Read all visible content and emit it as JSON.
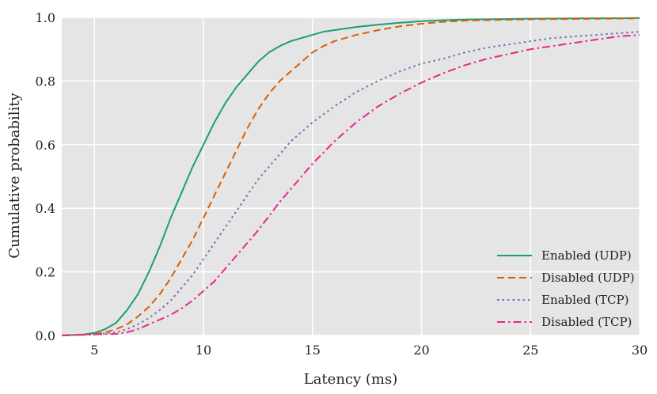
{
  "chart_data": {
    "type": "line",
    "title": "",
    "xlabel": "Latency (ms)",
    "ylabel": "Cumulative probability",
    "xlim": [
      3.5,
      30
    ],
    "ylim": [
      0,
      1
    ],
    "xticks": [
      5,
      10,
      15,
      20,
      25,
      30
    ],
    "xtick_labels": [
      "5",
      "10",
      "15",
      "20",
      "25",
      "30"
    ],
    "yticks": [
      0,
      0.2,
      0.4,
      0.6,
      0.8,
      1.0
    ],
    "ytick_labels": [
      "0.0",
      "0.2",
      "0.4",
      "0.6",
      "0.8",
      "1.0"
    ],
    "grid": true,
    "background": "#e5e5e5",
    "legend_position": "bottom-right",
    "series": [
      {
        "name": "Enabled (UDP)",
        "color": "#1b9e77",
        "dash": "solid",
        "x": [
          3.5,
          4.5,
          5,
          5.5,
          6,
          6.5,
          7,
          7.5,
          8,
          8.5,
          9,
          9.5,
          10,
          10.5,
          11,
          11.5,
          12,
          12.5,
          13,
          13.5,
          14,
          14.5,
          15,
          15.5,
          16,
          17,
          18,
          19,
          20,
          21,
          22,
          25,
          30
        ],
        "y": [
          0.0,
          0.003,
          0.008,
          0.02,
          0.04,
          0.08,
          0.13,
          0.2,
          0.28,
          0.37,
          0.45,
          0.53,
          0.6,
          0.67,
          0.73,
          0.78,
          0.82,
          0.86,
          0.89,
          0.91,
          0.925,
          0.935,
          0.945,
          0.955,
          0.96,
          0.97,
          0.977,
          0.983,
          0.988,
          0.991,
          0.993,
          0.996,
          0.998
        ]
      },
      {
        "name": "Disabled (UDP)",
        "color": "#d95f02",
        "dash": "dashed",
        "x": [
          3.5,
          5,
          5.5,
          6,
          6.5,
          7,
          7.5,
          8,
          8.5,
          9,
          9.5,
          10,
          10.5,
          11,
          11.5,
          12,
          12.5,
          13,
          13.5,
          14,
          14.5,
          15,
          15.5,
          16,
          17,
          18,
          19,
          20,
          21,
          22,
          25,
          30
        ],
        "y": [
          0.0,
          0.004,
          0.01,
          0.02,
          0.035,
          0.06,
          0.09,
          0.13,
          0.18,
          0.24,
          0.3,
          0.37,
          0.44,
          0.51,
          0.58,
          0.65,
          0.71,
          0.76,
          0.8,
          0.83,
          0.86,
          0.89,
          0.91,
          0.925,
          0.945,
          0.96,
          0.972,
          0.98,
          0.986,
          0.99,
          0.994,
          0.997
        ]
      },
      {
        "name": "Enabled (TCP)",
        "color": "#7570b3",
        "dash": "dotted",
        "x": [
          3.5,
          5,
          6,
          6.5,
          7,
          7.5,
          8,
          8.5,
          9,
          9.5,
          10,
          10.5,
          11,
          11.5,
          12,
          12.5,
          13,
          13.5,
          14,
          14.5,
          15,
          16,
          17,
          18,
          19,
          20,
          21,
          22,
          23,
          24,
          25,
          26,
          27,
          28,
          29,
          30
        ],
        "y": [
          0.0,
          0.003,
          0.01,
          0.02,
          0.035,
          0.055,
          0.08,
          0.11,
          0.15,
          0.19,
          0.24,
          0.29,
          0.34,
          0.39,
          0.44,
          0.49,
          0.53,
          0.57,
          0.61,
          0.64,
          0.67,
          0.72,
          0.765,
          0.8,
          0.83,
          0.855,
          0.87,
          0.89,
          0.905,
          0.915,
          0.925,
          0.935,
          0.94,
          0.945,
          0.95,
          0.955
        ]
      },
      {
        "name": "Disabled (TCP)",
        "color": "#e7298a",
        "dash": "dashdot",
        "x": [
          3.5,
          6,
          6.5,
          7,
          7.5,
          8,
          8.5,
          9,
          9.5,
          10,
          10.5,
          11,
          11.5,
          12,
          12.5,
          13,
          13.5,
          14,
          14.5,
          15,
          15.5,
          16,
          17,
          18,
          19,
          20,
          21,
          22,
          23,
          24,
          25,
          26,
          27,
          28,
          29,
          30
        ],
        "y": [
          0.0,
          0.005,
          0.01,
          0.02,
          0.035,
          0.05,
          0.065,
          0.085,
          0.11,
          0.14,
          0.17,
          0.21,
          0.25,
          0.29,
          0.33,
          0.375,
          0.42,
          0.46,
          0.5,
          0.54,
          0.575,
          0.61,
          0.67,
          0.72,
          0.76,
          0.795,
          0.825,
          0.85,
          0.87,
          0.885,
          0.9,
          0.91,
          0.92,
          0.93,
          0.94,
          0.945
        ]
      }
    ]
  }
}
